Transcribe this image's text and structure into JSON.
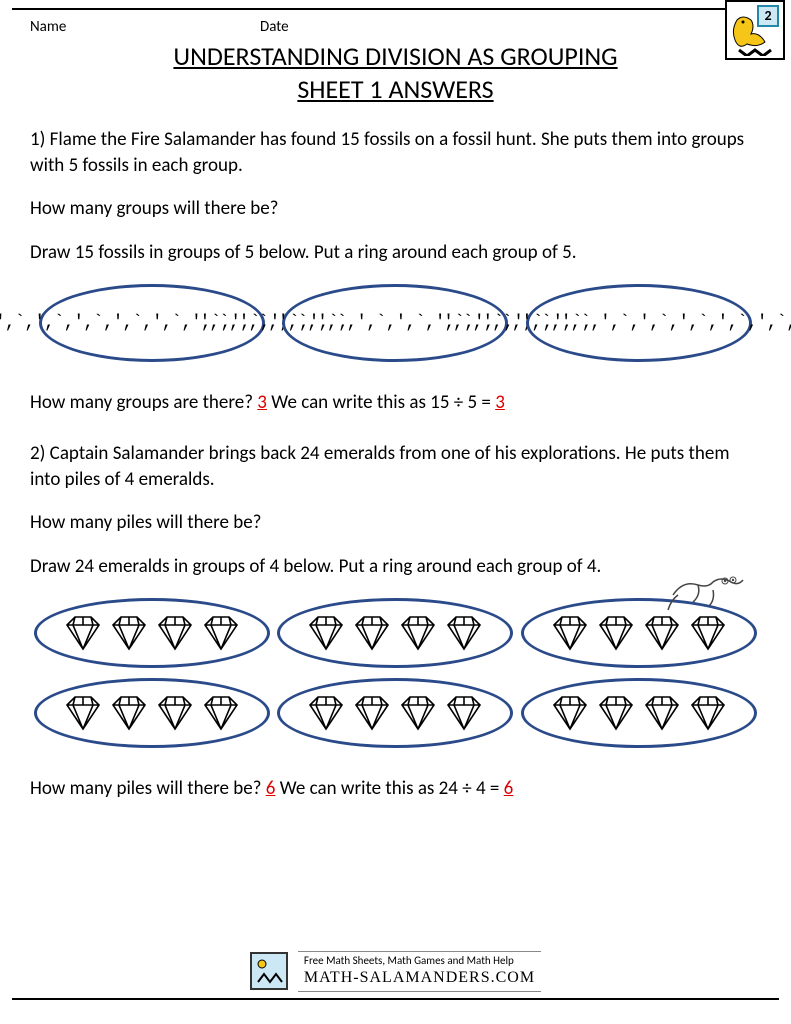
{
  "header": {
    "name_label": "Name",
    "date_label": "Date"
  },
  "badge": {
    "grade": "2"
  },
  "title_line1": "UNDERSTANDING DIVISION AS GROUPING",
  "title_line2": "SHEET 1 ANSWERS",
  "q1": {
    "text": "1) Flame the Fire Salamander has found 15 fossils on a fossil hunt. She puts them into groups with 5 fossils in each group.",
    "prompt": "How many groups will there be?",
    "instruction": "Draw 15 fossils in groups of 5 below. Put a ring around each group of 5.",
    "summary_pre": "How many groups are there?  ",
    "answer": "3",
    "summary_mid": "  We can write this as 15 ÷ 5 = ",
    "answer2": "3",
    "groups": 3,
    "per_group": 5,
    "oval_border": "#2a4a8a"
  },
  "q2": {
    "text": "2) Captain Salamander brings back 24 emeralds from one of his explorations. He puts them into piles of 4 emeralds.",
    "prompt": "How many piles will there be?",
    "instruction": "Draw 24 emeralds in groups of 4 below. Put a ring around each group of 4.",
    "summary_pre": "How many piles will there be? ",
    "answer": "6",
    "summary_mid": " We can write this as 24 ÷ 4 = ",
    "answer2": "6",
    "groups": 6,
    "per_group": 4,
    "oval_border": "#2a4a8a"
  },
  "footer": {
    "tagline": "Free Math Sheets, Math Games and Math Help",
    "site": "MATH-SALAMANDERS.COM"
  },
  "colors": {
    "answer_color": "#d00000",
    "oval_border": "#2a4a8a",
    "text": "#000000",
    "background": "#ffffff"
  }
}
